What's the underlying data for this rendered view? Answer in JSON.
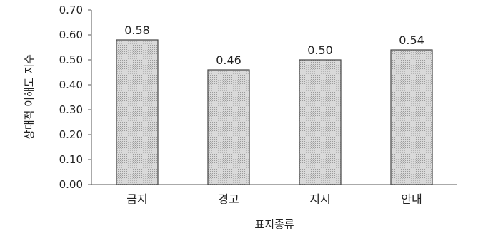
{
  "chart_data": {
    "type": "bar",
    "categories": [
      "금지",
      "경고",
      "지시",
      "안내"
    ],
    "values": [
      0.58,
      0.46,
      0.5,
      0.54
    ],
    "data_labels": [
      "0.58",
      "0.46",
      "0.50",
      "0.54"
    ],
    "title": "",
    "xlabel": "표지종류",
    "ylabel": "상대적 이해도 지수",
    "ylim": [
      0,
      0.7
    ],
    "yticks": [
      "0.00",
      "0.10",
      "0.20",
      "0.30",
      "0.40",
      "0.50",
      "0.60",
      "0.70"
    ],
    "grid": false,
    "bar_color": "#d4d4d4"
  }
}
